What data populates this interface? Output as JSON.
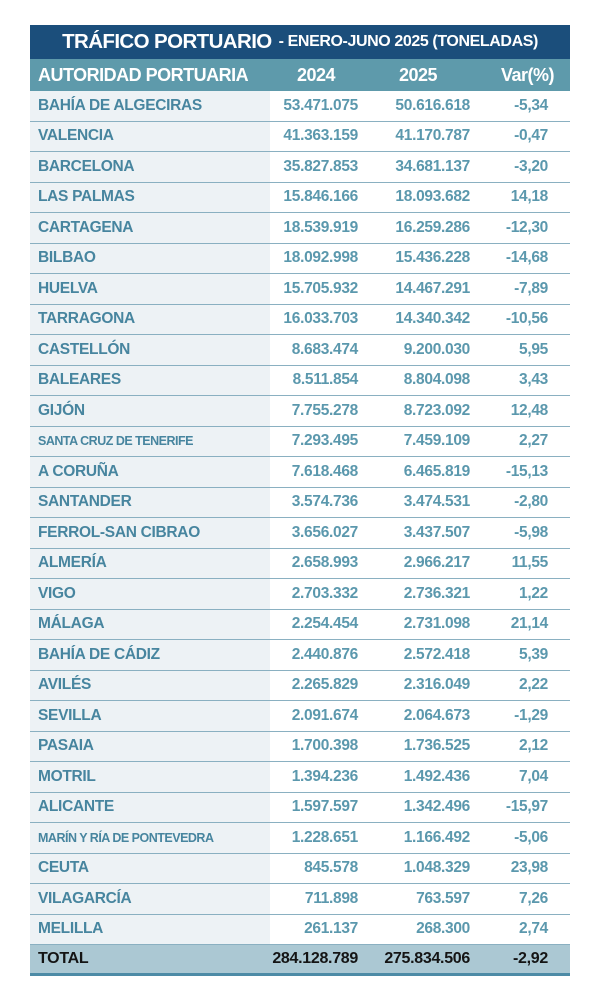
{
  "title": {
    "main": "TRÁFICO PORTUARIO",
    "sub": "- ENERO-JUNO 2025 (TONELADAS)"
  },
  "chart_data": {
    "type": "table",
    "title": "TRÁFICO PORTUARIO - ENERO-JUNO 2025 (TONELADAS)",
    "columns": [
      "AUTORIDAD PORTUARIA",
      "2024",
      "2025",
      "Var(%)"
    ],
    "rows": [
      {
        "name": "BAHÍA DE ALGECIRAS",
        "y2024": "53.471.075",
        "y2025": "50.616.618",
        "var": "-5,34"
      },
      {
        "name": "VALENCIA",
        "y2024": "41.363.159",
        "y2025": "41.170.787",
        "var": "-0,47"
      },
      {
        "name": "BARCELONA",
        "y2024": "35.827.853",
        "y2025": "34.681.137",
        "var": "-3,20"
      },
      {
        "name": "LAS PALMAS",
        "y2024": "15.846.166",
        "y2025": "18.093.682",
        "var": "14,18"
      },
      {
        "name": "CARTAGENA",
        "y2024": "18.539.919",
        "y2025": "16.259.286",
        "var": "-12,30"
      },
      {
        "name": "BILBAO",
        "y2024": "18.092.998",
        "y2025": "15.436.228",
        "var": "-14,68"
      },
      {
        "name": "HUELVA",
        "y2024": "15.705.932",
        "y2025": "14.467.291",
        "var": "-7,89"
      },
      {
        "name": "TARRAGONA",
        "y2024": "16.033.703",
        "y2025": "14.340.342",
        "var": "-10,56"
      },
      {
        "name": "CASTELLÓN",
        "y2024": "8.683.474",
        "y2025": "9.200.030",
        "var": "5,95"
      },
      {
        "name": "BALEARES",
        "y2024": "8.511.854",
        "y2025": "8.804.098",
        "var": "3,43"
      },
      {
        "name": "GIJÓN",
        "y2024": "7.755.278",
        "y2025": "8.723.092",
        "var": "12,48"
      },
      {
        "name": "SANTA CRUZ DE TENERIFE",
        "y2024": "7.293.495",
        "y2025": "7.459.109",
        "var": "2,27"
      },
      {
        "name": "A CORUÑA",
        "y2024": "7.618.468",
        "y2025": "6.465.819",
        "var": "-15,13"
      },
      {
        "name": "SANTANDER",
        "y2024": "3.574.736",
        "y2025": "3.474.531",
        "var": "-2,80"
      },
      {
        "name": "FERROL-SAN CIBRAO",
        "y2024": "3.656.027",
        "y2025": "3.437.507",
        "var": "-5,98"
      },
      {
        "name": "ALMERÍA",
        "y2024": "2.658.993",
        "y2025": "2.966.217",
        "var": "11,55"
      },
      {
        "name": "VIGO",
        "y2024": "2.703.332",
        "y2025": "2.736.321",
        "var": "1,22"
      },
      {
        "name": "MÁLAGA",
        "y2024": "2.254.454",
        "y2025": "2.731.098",
        "var": "21,14"
      },
      {
        "name": "BAHÍA DE CÁDIZ",
        "y2024": "2.440.876",
        "y2025": "2.572.418",
        "var": "5,39"
      },
      {
        "name": "AVILÉS",
        "y2024": "2.265.829",
        "y2025": "2.316.049",
        "var": "2,22"
      },
      {
        "name": "SEVILLA",
        "y2024": "2.091.674",
        "y2025": "2.064.673",
        "var": "-1,29"
      },
      {
        "name": "PASAIA",
        "y2024": "1.700.398",
        "y2025": "1.736.525",
        "var": "2,12"
      },
      {
        "name": "MOTRIL",
        "y2024": "1.394.236",
        "y2025": "1.492.436",
        "var": "7,04"
      },
      {
        "name": "ALICANTE",
        "y2024": "1.597.597",
        "y2025": "1.342.496",
        "var": "-15,97"
      },
      {
        "name": "MARÍN Y RÍA DE PONTEVEDRA",
        "y2024": "1.228.651",
        "y2025": "1.166.492",
        "var": "-5,06"
      },
      {
        "name": "CEUTA",
        "y2024": "845.578",
        "y2025": "1.048.329",
        "var": "23,98"
      },
      {
        "name": "VILAGARCÍA",
        "y2024": "711.898",
        "y2025": "763.597",
        "var": "7,26"
      },
      {
        "name": "MELILLA",
        "y2024": "261.137",
        "y2025": "268.300",
        "var": "2,74"
      }
    ],
    "total": {
      "name": "TOTAL",
      "y2024": "284.128.789",
      "y2025": "275.834.506",
      "var": "-2,92"
    }
  },
  "colors": {
    "title_bg": "#1b4e7b",
    "header_bg": "#5e9aab",
    "name_col_bg": "#edf2f5",
    "row_border": "#8ab0c1",
    "name_text": "#47859f",
    "value_text": "#5b98ad",
    "total_bg": "#abc8d3",
    "total_text": "#141414",
    "bottom_border": "#4d8ba6"
  }
}
